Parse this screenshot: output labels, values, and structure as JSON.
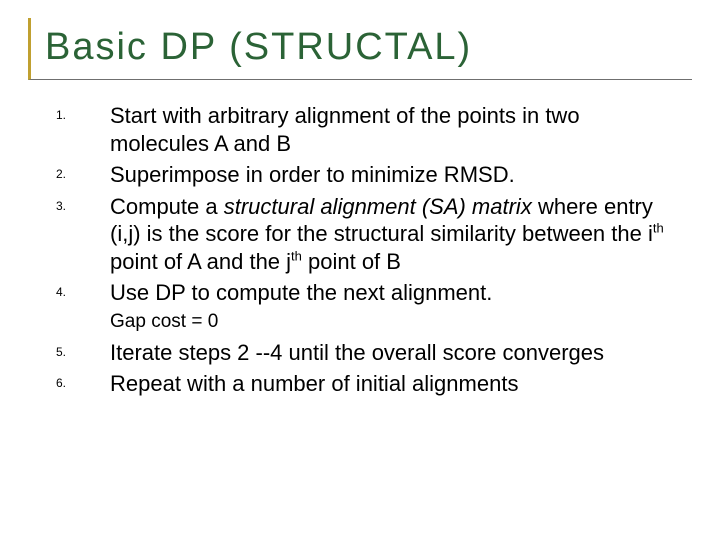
{
  "title": "Basic DP (STRUCTAL)",
  "title_color": "#2b6336",
  "title_fontsize": 38,
  "accent_border_color": "#c0a030",
  "underline_color": "#6f6f6f",
  "body_fontsize": 22,
  "number_fontsize": 12,
  "gap_fontsize": 19,
  "background_color": "#ffffff",
  "items": [
    {
      "num": "1.",
      "text": "Start with arbitrary alignment of the points in two molecules A and B"
    },
    {
      "num": "2.",
      "text": "Superimpose in order to minimize RMSD."
    },
    {
      "num": "3.",
      "pre": "Compute a ",
      "ital": "structural alignment (SA) matrix",
      "mid1": " where entry (i,j) is the score for the structural similarity between the i",
      "sup1": "th",
      "mid2": " point of A and the j",
      "sup2": "th",
      "post": " point of B"
    },
    {
      "num": "4.",
      "text": "Use DP to compute the next alignment."
    }
  ],
  "gap_note": "Gap cost = 0",
  "items2": [
    {
      "num": "5.",
      "text": "Iterate steps 2 --4 until the overall score converges"
    },
    {
      "num": "6.",
      "text": "Repeat with a number of initial alignments"
    }
  ]
}
